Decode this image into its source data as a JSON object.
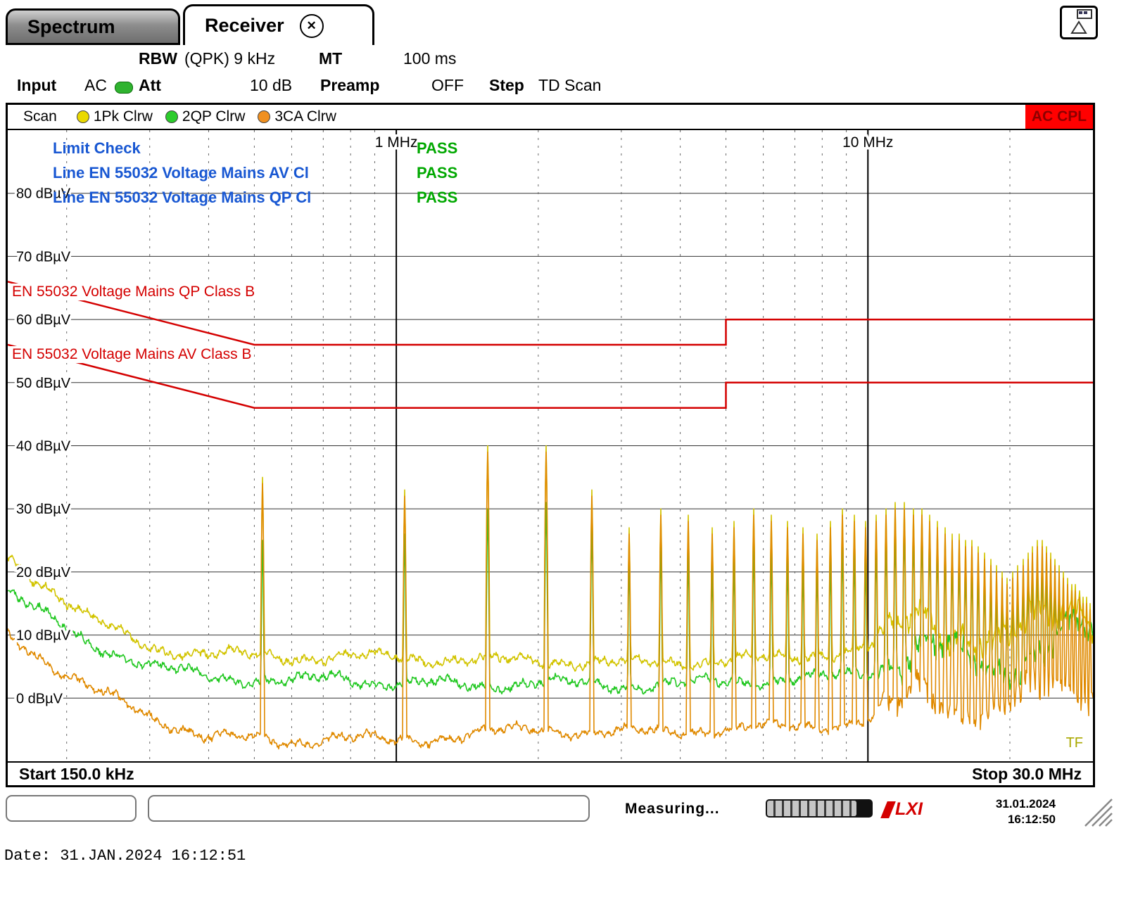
{
  "tabs": [
    {
      "label": "Spectrum"
    },
    {
      "label": "Receiver"
    }
  ],
  "header": {
    "rbw_label": "RBW",
    "rbw_value": "(QPK) 9 kHz",
    "mt_label": "MT",
    "mt_value": "100 ms",
    "input_label": "Input",
    "input_value": "AC",
    "att_label": "Att",
    "att_value": "10 dB",
    "preamp_label": "Preamp",
    "preamp_value": "OFF",
    "step_label": "Step",
    "step_value": "TD Scan"
  },
  "scanbar": {
    "scan_label": "Scan",
    "traces": [
      {
        "label": "1Pk Clrw",
        "color": "#ead900"
      },
      {
        "label": "2QP Clrw",
        "color": "#2ccc2c"
      },
      {
        "label": "3CA Clrw",
        "color": "#f09020"
      }
    ],
    "coupling": "AC CPL"
  },
  "limit_check": {
    "rows": [
      {
        "name": "Limit Check",
        "result": "PASS"
      },
      {
        "name": "Line EN 55032 Voltage Mains AV Cl",
        "result": "PASS"
      },
      {
        "name": "Line EN 55032 Voltage Mains QP Cl",
        "result": "PASS"
      }
    ]
  },
  "axis": {
    "start_label": "Start 150.0 kHz",
    "stop_label": "Stop 30.0 MHz",
    "tf_label": "TF"
  },
  "statusbar": {
    "measuring": "Measuring...",
    "date": "31.01.2024",
    "time": "16:12:50"
  },
  "footer_date": "Date: 31.JAN.2024  16:12:51",
  "chart_data": {
    "type": "line",
    "x_axis": {
      "scale": "log",
      "start_mhz": 0.15,
      "stop_mhz": 30,
      "start_label": "Start 150.0 kHz",
      "stop_label": "Stop 30.0 MHz",
      "markers": [
        {
          "f_mhz": 1,
          "label": "1 MHz"
        },
        {
          "f_mhz": 10,
          "label": "10 MHz"
        }
      ]
    },
    "y_axis": {
      "min": -10,
      "max": 90,
      "tick_min": 0,
      "tick_max": 80,
      "tick_step": 10,
      "unit": "dBµV"
    },
    "limit_lines": [
      {
        "name": "EN 55032 Voltage Mains QP Class B",
        "color": "#d40000",
        "label_db": 64.3,
        "points_mhz_db": [
          [
            0.15,
            66
          ],
          [
            0.5,
            56
          ],
          [
            5,
            56
          ],
          [
            5,
            60
          ],
          [
            30,
            60
          ]
        ]
      },
      {
        "name": "EN 55032 Voltage Mains AV Class B",
        "color": "#d40000",
        "label_db": 54.3,
        "points_mhz_db": [
          [
            0.15,
            56
          ],
          [
            0.5,
            46
          ],
          [
            5,
            46
          ],
          [
            5,
            50
          ],
          [
            30,
            50
          ]
        ]
      }
    ],
    "traces": [
      {
        "name": "1Pk",
        "color": "#d2c400",
        "seed": 1,
        "spike_col": 1,
        "baseline_mhz_db": [
          [
            0.15,
            22
          ],
          [
            0.18,
            18
          ],
          [
            0.22,
            13
          ],
          [
            0.3,
            8
          ],
          [
            0.4,
            7
          ],
          [
            0.6,
            6.5
          ],
          [
            1,
            6.5
          ],
          [
            1.5,
            6
          ],
          [
            2,
            6
          ],
          [
            3,
            5.5
          ],
          [
            5,
            6
          ],
          [
            7,
            6.5
          ],
          [
            9,
            7.5
          ],
          [
            10,
            8
          ],
          [
            10.8,
            9
          ],
          [
            11.5,
            10
          ],
          [
            12,
            12
          ],
          [
            12.8,
            14
          ],
          [
            13.5,
            13
          ],
          [
            14.5,
            11
          ],
          [
            16,
            10
          ],
          [
            17.5,
            9
          ],
          [
            19,
            8.5
          ],
          [
            20,
            9
          ],
          [
            21,
            10
          ],
          [
            22.5,
            12
          ],
          [
            24,
            13
          ],
          [
            25.5,
            14
          ],
          [
            27,
            15
          ],
          [
            28.5,
            16
          ],
          [
            30,
            13
          ]
        ]
      },
      {
        "name": "2QP",
        "color": "#22c822",
        "seed": 2,
        "spike_col": 2,
        "baseline_mhz_db": [
          [
            0.15,
            17
          ],
          [
            0.18,
            13
          ],
          [
            0.22,
            9
          ],
          [
            0.3,
            5
          ],
          [
            0.4,
            3.5
          ],
          [
            0.6,
            2.5
          ],
          [
            0.75,
            3.5
          ],
          [
            0.9,
            2.5
          ],
          [
            1.5,
            2
          ],
          [
            2,
            2.5
          ],
          [
            3,
            2
          ],
          [
            5,
            2.5
          ],
          [
            7,
            3
          ],
          [
            9,
            3.5
          ],
          [
            10,
            4
          ],
          [
            11,
            5
          ],
          [
            12,
            7
          ],
          [
            13,
            9
          ],
          [
            14,
            8
          ],
          [
            15,
            7
          ],
          [
            16,
            6
          ],
          [
            17,
            5
          ],
          [
            18,
            4.5
          ],
          [
            19,
            4.5
          ],
          [
            20,
            5
          ],
          [
            21,
            6
          ],
          [
            22.5,
            7.5
          ],
          [
            24,
            9
          ],
          [
            26,
            10
          ],
          [
            28,
            11
          ],
          [
            30,
            9
          ]
        ]
      },
      {
        "name": "3CA",
        "color": "#e08a00",
        "seed": 3,
        "spike_col": 3,
        "baseline_mhz_db": [
          [
            0.15,
            10
          ],
          [
            0.18,
            6
          ],
          [
            0.22,
            2
          ],
          [
            0.3,
            -3
          ],
          [
            0.4,
            -6
          ],
          [
            0.6,
            -7
          ],
          [
            0.75,
            -6
          ],
          [
            1,
            -7
          ],
          [
            1.5,
            -5.5
          ],
          [
            2,
            -5
          ],
          [
            3,
            -5.5
          ],
          [
            5,
            -5
          ],
          [
            7,
            -4.5
          ],
          [
            9,
            -4
          ],
          [
            10,
            -3.5
          ],
          [
            11,
            -2.5
          ],
          [
            12,
            -1
          ],
          [
            13,
            1
          ],
          [
            14,
            0
          ],
          [
            15,
            -1
          ],
          [
            16,
            -1.5
          ],
          [
            17,
            -2
          ],
          [
            18,
            -2.5
          ],
          [
            19,
            -2.5
          ],
          [
            20,
            -2
          ],
          [
            21,
            -1
          ],
          [
            22.5,
            0
          ],
          [
            24,
            1
          ],
          [
            26,
            2
          ],
          [
            28,
            2.5
          ],
          [
            30,
            1
          ]
        ]
      }
    ],
    "spikes_f_pk_qp_ca": [
      [
        0.52,
        35,
        25,
        34
      ],
      [
        1.04,
        33,
        26,
        32
      ],
      [
        1.56,
        40,
        30,
        39
      ],
      [
        2.08,
        40,
        31,
        39
      ],
      [
        2.6,
        33,
        27,
        32
      ],
      [
        3.12,
        27,
        22,
        26
      ],
      [
        3.64,
        30,
        24,
        29
      ],
      [
        4.16,
        29,
        23,
        28
      ],
      [
        4.68,
        27,
        21,
        26
      ],
      [
        5.2,
        28,
        22,
        27
      ],
      [
        5.72,
        30,
        24,
        29
      ],
      [
        6.24,
        29,
        23,
        28
      ],
      [
        6.76,
        28,
        22,
        27
      ],
      [
        7.28,
        27,
        21,
        26
      ],
      [
        7.8,
        26,
        21,
        25
      ],
      [
        8.32,
        28,
        22,
        27
      ],
      [
        8.84,
        30,
        24,
        29
      ],
      [
        9.36,
        29,
        23,
        28
      ],
      [
        9.88,
        28,
        22,
        27
      ],
      [
        10.4,
        29,
        24,
        28
      ],
      [
        10.92,
        30,
        25,
        29
      ],
      [
        11.44,
        31,
        26,
        30
      ],
      [
        11.96,
        31,
        27,
        30
      ],
      [
        12.48,
        30,
        26,
        29
      ],
      [
        13.0,
        30,
        26,
        29
      ],
      [
        13.52,
        29,
        25,
        28
      ],
      [
        14.04,
        28,
        24,
        27
      ],
      [
        14.56,
        27,
        23,
        26
      ],
      [
        15.08,
        26,
        22,
        25
      ],
      [
        15.6,
        26,
        22,
        25
      ],
      [
        16.12,
        25,
        21,
        24
      ],
      [
        16.64,
        25,
        21,
        24
      ],
      [
        17.16,
        24,
        20,
        23
      ],
      [
        17.68,
        23,
        19,
        22
      ],
      [
        18.2,
        22,
        18,
        21
      ],
      [
        18.72,
        21,
        17,
        20
      ],
      [
        19.24,
        20,
        16,
        19
      ],
      [
        19.76,
        19,
        15,
        18
      ],
      [
        20.28,
        20,
        16,
        19
      ],
      [
        20.8,
        21,
        17,
        20
      ],
      [
        21.32,
        22,
        18,
        21
      ],
      [
        21.84,
        23,
        19,
        22
      ],
      [
        22.36,
        24,
        20,
        23
      ],
      [
        22.88,
        25,
        21,
        24
      ],
      [
        23.4,
        25,
        21,
        24
      ],
      [
        23.92,
        24,
        20,
        23
      ],
      [
        24.44,
        23,
        19,
        22
      ],
      [
        24.96,
        22,
        18,
        21
      ],
      [
        25.48,
        21,
        17,
        20
      ],
      [
        26.0,
        20,
        16,
        19
      ],
      [
        26.52,
        19,
        15,
        18
      ],
      [
        27.04,
        18,
        15,
        17
      ],
      [
        27.56,
        18,
        14,
        17
      ],
      [
        28.08,
        17,
        14,
        16
      ],
      [
        28.6,
        16,
        13,
        15
      ],
      [
        29.12,
        16,
        13,
        15
      ],
      [
        29.64,
        15,
        12,
        14
      ]
    ]
  }
}
